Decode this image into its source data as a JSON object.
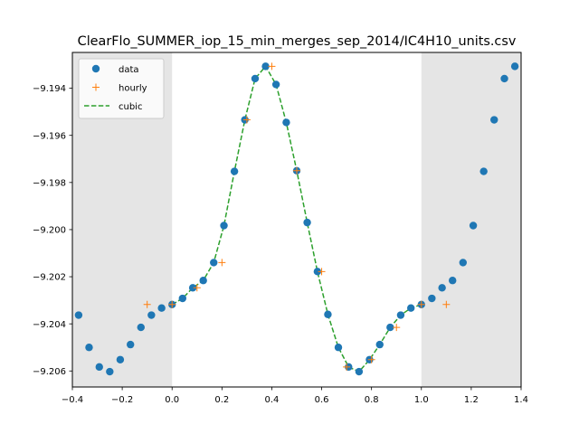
{
  "chart_data": {
    "type": "scatter",
    "title": "ClearFlo_SUMMER_iop_15_min_merges_sep_2014/IC4H10_units.csv",
    "xlabel": "",
    "ylabel": "",
    "xlim": [
      -0.4,
      1.4
    ],
    "ylim": [
      -9.20668,
      -9.19248
    ],
    "xticks": [
      -0.4,
      -0.2,
      0.0,
      0.2,
      0.4,
      0.6,
      0.8,
      1.0,
      1.2,
      1.4
    ],
    "xtick_labels": [
      "−0.4",
      "−0.2",
      "0.0",
      "0.2",
      "0.4",
      "0.6",
      "0.8",
      "1.0",
      "1.2",
      "1.4"
    ],
    "yticks": [
      -9.206,
      -9.204,
      -9.202,
      -9.2,
      -9.198,
      -9.196,
      -9.194
    ],
    "ytick_labels": [
      "−9.206",
      "−9.204",
      "−9.202",
      "−9.200",
      "−9.198",
      "−9.196",
      "−9.194"
    ],
    "shaded_regions": [
      {
        "x0": -0.4,
        "x1": 0.0
      },
      {
        "x0": 1.0,
        "x1": 1.4
      }
    ],
    "grid": false,
    "legend_position": "upper-left",
    "series": [
      {
        "name": "data",
        "style": "marker-circle",
        "color": "#1f77b4",
        "x": [
          -0.375,
          -0.333,
          -0.292,
          -0.25,
          -0.208,
          -0.167,
          -0.125,
          -0.083,
          -0.042,
          0.0,
          0.042,
          0.083,
          0.125,
          0.167,
          0.208,
          0.25,
          0.292,
          0.333,
          0.375,
          0.417,
          0.458,
          0.5,
          0.542,
          0.583,
          0.625,
          0.667,
          0.708,
          0.75,
          0.792,
          0.833,
          0.875,
          0.917,
          0.958,
          1.0,
          1.042,
          1.083,
          1.125,
          1.167,
          1.208,
          1.25,
          1.292,
          1.333,
          1.375
        ],
        "y": [
          -9.20363,
          -9.205,
          -9.20583,
          -9.20603,
          -9.20552,
          -9.20488,
          -9.20415,
          -9.20363,
          -9.20333,
          -9.20318,
          -9.20292,
          -9.20247,
          -9.20216,
          -9.2014,
          -9.19983,
          -9.19753,
          -9.19534,
          -9.19359,
          -9.19307,
          -9.19384,
          -9.19545,
          -9.1975,
          -9.1997,
          -9.20178,
          -9.2036,
          -9.205,
          -9.20583,
          -9.20603,
          -9.20552,
          -9.20488,
          -9.20415,
          -9.20363,
          -9.20333,
          -9.20318,
          -9.20292,
          -9.20247,
          -9.20216,
          -9.2014,
          -9.19983,
          -9.19753,
          -9.19534,
          -9.19359,
          -9.19307
        ]
      },
      {
        "name": "hourly",
        "style": "marker-plus",
        "color": "#ff7f0e",
        "x": [
          -0.1,
          0.0,
          0.1,
          0.2,
          0.3,
          0.4,
          0.5,
          0.6,
          0.7,
          0.8,
          0.9,
          1.0,
          1.1
        ],
        "y": [
          -9.20318,
          -9.20318,
          -9.20247,
          -9.2014,
          -9.19534,
          -9.19307,
          -9.1975,
          -9.20178,
          -9.20583,
          -9.20552,
          -9.20415,
          -9.20318,
          -9.20318
        ]
      },
      {
        "name": "cubic",
        "style": "dashed-line",
        "color": "#2ca02c",
        "x": [
          0.0,
          0.042,
          0.083,
          0.125,
          0.167,
          0.208,
          0.25,
          0.292,
          0.333,
          0.375,
          0.417,
          0.458,
          0.5,
          0.542,
          0.583,
          0.625,
          0.667,
          0.708,
          0.75,
          0.792,
          0.833,
          0.875,
          0.917,
          0.958,
          1.0
        ],
        "y": [
          -9.20318,
          -9.20292,
          -9.20247,
          -9.20216,
          -9.2014,
          -9.19983,
          -9.19753,
          -9.19534,
          -9.19359,
          -9.19307,
          -9.19384,
          -9.19545,
          -9.1975,
          -9.1997,
          -9.20178,
          -9.2036,
          -9.205,
          -9.20583,
          -9.20603,
          -9.20552,
          -9.20488,
          -9.20415,
          -9.20363,
          -9.20333,
          -9.20318
        ]
      }
    ]
  }
}
